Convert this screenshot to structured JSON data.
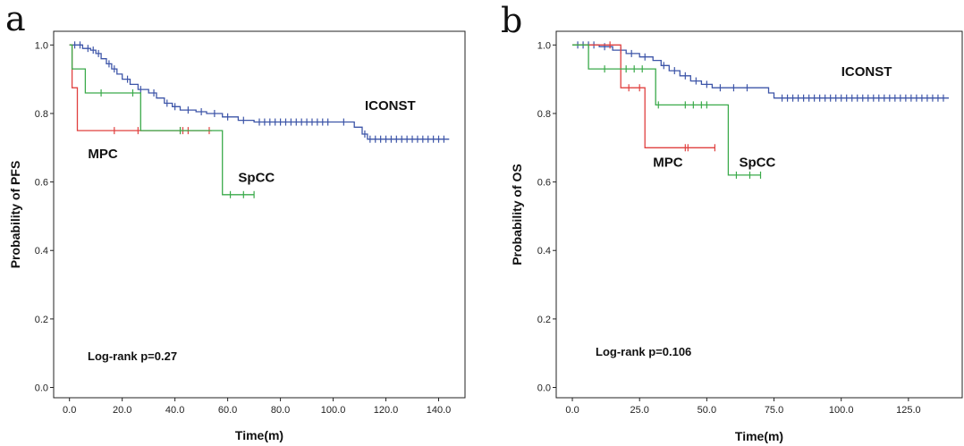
{
  "chart_data": [
    {
      "panel": "a",
      "type": "line",
      "xlabel": "Time(m)",
      "ylabel": "Probability of PFS",
      "xlim": [
        -6,
        150
      ],
      "ylim": [
        -0.03,
        1.04
      ],
      "xticks": [
        0,
        20,
        40,
        60,
        80,
        100,
        120,
        140
      ],
      "xtick_labels": [
        "0.0",
        "20.0",
        "40.0",
        "60.0",
        "80.0",
        "100.0",
        "120.0",
        "140.0"
      ],
      "yticks": [
        0,
        0.2,
        0.4,
        0.6,
        0.8,
        1.0
      ],
      "ytick_labels": [
        "0.0",
        "0.2",
        "0.4",
        "0.6",
        "0.8",
        "1.0"
      ],
      "annotation": "Log-rank p=0.27",
      "series": [
        {
          "name": "ICONST",
          "color": "#3d55a8",
          "end_x": 144,
          "steps": [
            [
              0,
              1.0
            ],
            [
              5,
              0.99
            ],
            [
              8,
              0.985
            ],
            [
              10,
              0.975
            ],
            [
              12,
              0.96
            ],
            [
              14,
              0.945
            ],
            [
              16,
              0.93
            ],
            [
              18,
              0.915
            ],
            [
              20,
              0.9
            ],
            [
              23,
              0.885
            ],
            [
              26,
              0.87
            ],
            [
              30,
              0.86
            ],
            [
              33,
              0.845
            ],
            [
              36,
              0.83
            ],
            [
              39,
              0.82
            ],
            [
              42,
              0.81
            ],
            [
              48,
              0.805
            ],
            [
              52,
              0.8
            ],
            [
              58,
              0.79
            ],
            [
              64,
              0.78
            ],
            [
              70,
              0.775
            ],
            [
              80,
              0.775
            ],
            [
              100,
              0.775
            ],
            [
              108,
              0.76
            ],
            [
              111,
              0.74
            ],
            [
              113,
              0.725
            ]
          ],
          "censors": [
            [
              2,
              1.0
            ],
            [
              4,
              1.0
            ],
            [
              7,
              0.99
            ],
            [
              9,
              0.985
            ],
            [
              11,
              0.975
            ],
            [
              15,
              0.945
            ],
            [
              17,
              0.93
            ],
            [
              22,
              0.9
            ],
            [
              27,
              0.87
            ],
            [
              32,
              0.86
            ],
            [
              37,
              0.83
            ],
            [
              40,
              0.82
            ],
            [
              45,
              0.81
            ],
            [
              50,
              0.805
            ],
            [
              55,
              0.8
            ],
            [
              60,
              0.79
            ],
            [
              66,
              0.78
            ],
            [
              72,
              0.775
            ],
            [
              74,
              0.775
            ],
            [
              76,
              0.775
            ],
            [
              78,
              0.775
            ],
            [
              80,
              0.775
            ],
            [
              82,
              0.775
            ],
            [
              84,
              0.775
            ],
            [
              86,
              0.775
            ],
            [
              88,
              0.775
            ],
            [
              90,
              0.775
            ],
            [
              92,
              0.775
            ],
            [
              94,
              0.775
            ],
            [
              96,
              0.775
            ],
            [
              98,
              0.775
            ],
            [
              104,
              0.775
            ],
            [
              112,
              0.74
            ],
            [
              114,
              0.725
            ],
            [
              116,
              0.725
            ],
            [
              118,
              0.725
            ],
            [
              120,
              0.725
            ],
            [
              122,
              0.725
            ],
            [
              124,
              0.725
            ],
            [
              126,
              0.725
            ],
            [
              128,
              0.725
            ],
            [
              130,
              0.725
            ],
            [
              132,
              0.725
            ],
            [
              134,
              0.725
            ],
            [
              136,
              0.725
            ],
            [
              138,
              0.725
            ],
            [
              140,
              0.725
            ],
            [
              142,
              0.725
            ]
          ],
          "label": "ICONST",
          "label_at": [
            112,
            0.81
          ]
        },
        {
          "name": "MPC",
          "color": "#e0403f",
          "end_x": 54,
          "steps": [
            [
              0,
              1.0
            ],
            [
              1,
              0.875
            ],
            [
              3,
              0.75
            ]
          ],
          "censors": [
            [
              17,
              0.75
            ],
            [
              26,
              0.75
            ],
            [
              42,
              0.75
            ],
            [
              43,
              0.75
            ],
            [
              45,
              0.75
            ],
            [
              53,
              0.75
            ]
          ],
          "label": "MPC",
          "label_at": [
            7,
            0.67
          ]
        },
        {
          "name": "SpCC",
          "color": "#3aaa4a",
          "end_x": 70,
          "steps": [
            [
              0,
              1.0
            ],
            [
              1,
              0.93
            ],
            [
              6,
              0.86
            ],
            [
              27,
              0.75
            ],
            [
              58,
              0.563
            ]
          ],
          "censors": [
            [
              12,
              0.86
            ],
            [
              24,
              0.86
            ],
            [
              42,
              0.75
            ],
            [
              61,
              0.563
            ],
            [
              66,
              0.563
            ],
            [
              70,
              0.563
            ]
          ],
          "label": "SpCC",
          "label_at": [
            64,
            0.6
          ]
        }
      ]
    },
    {
      "panel": "b",
      "type": "line",
      "xlabel": "Time(m)",
      "ylabel": "Probability of OS",
      "xlim": [
        -6,
        145
      ],
      "ylim": [
        -0.03,
        1.04
      ],
      "xticks": [
        0,
        25,
        50,
        75,
        100,
        125
      ],
      "xtick_labels": [
        "0.0",
        "25.0",
        "50.0",
        "75.0",
        "100.0",
        "125.0"
      ],
      "yticks": [
        0,
        0.2,
        0.4,
        0.6,
        0.8,
        1.0
      ],
      "ytick_labels": [
        "0.0",
        "0.2",
        "0.4",
        "0.6",
        "0.8",
        "1.0"
      ],
      "annotation": "Log-rank p=0.106",
      "series": [
        {
          "name": "ICONST",
          "color": "#3d55a8",
          "end_x": 140,
          "steps": [
            [
              0,
              1.0
            ],
            [
              10,
              0.995
            ],
            [
              15,
              0.985
            ],
            [
              20,
              0.975
            ],
            [
              25,
              0.965
            ],
            [
              30,
              0.955
            ],
            [
              33,
              0.94
            ],
            [
              36,
              0.925
            ],
            [
              40,
              0.91
            ],
            [
              44,
              0.895
            ],
            [
              48,
              0.885
            ],
            [
              52,
              0.875
            ],
            [
              70,
              0.875
            ],
            [
              73,
              0.86
            ],
            [
              75,
              0.845
            ]
          ],
          "censors": [
            [
              2,
              1.0
            ],
            [
              4,
              1.0
            ],
            [
              6,
              1.0
            ],
            [
              8,
              1.0
            ],
            [
              12,
              0.995
            ],
            [
              18,
              0.985
            ],
            [
              22,
              0.975
            ],
            [
              27,
              0.965
            ],
            [
              34,
              0.94
            ],
            [
              38,
              0.925
            ],
            [
              42,
              0.91
            ],
            [
              46,
              0.895
            ],
            [
              50,
              0.885
            ],
            [
              55,
              0.875
            ],
            [
              60,
              0.875
            ],
            [
              65,
              0.875
            ],
            [
              78,
              0.845
            ],
            [
              80,
              0.845
            ],
            [
              82,
              0.845
            ],
            [
              84,
              0.845
            ],
            [
              86,
              0.845
            ],
            [
              88,
              0.845
            ],
            [
              90,
              0.845
            ],
            [
              92,
              0.845
            ],
            [
              94,
              0.845
            ],
            [
              96,
              0.845
            ],
            [
              98,
              0.845
            ],
            [
              100,
              0.845
            ],
            [
              102,
              0.845
            ],
            [
              104,
              0.845
            ],
            [
              106,
              0.845
            ],
            [
              108,
              0.845
            ],
            [
              110,
              0.845
            ],
            [
              112,
              0.845
            ],
            [
              114,
              0.845
            ],
            [
              116,
              0.845
            ],
            [
              118,
              0.845
            ],
            [
              120,
              0.845
            ],
            [
              122,
              0.845
            ],
            [
              124,
              0.845
            ],
            [
              126,
              0.845
            ],
            [
              128,
              0.845
            ],
            [
              130,
              0.845
            ],
            [
              132,
              0.845
            ],
            [
              134,
              0.845
            ],
            [
              136,
              0.845
            ],
            [
              138,
              0.845
            ]
          ],
          "label": "ICONST",
          "label_at": [
            100,
            0.91
          ]
        },
        {
          "name": "MPC",
          "color": "#e0403f",
          "end_x": 53,
          "steps": [
            [
              0,
              1.0
            ],
            [
              18,
              0.875
            ],
            [
              27,
              0.7
            ]
          ],
          "censors": [
            [
              14,
              1.0
            ],
            [
              21,
              0.875
            ],
            [
              25,
              0.875
            ],
            [
              42,
              0.7
            ],
            [
              43,
              0.7
            ],
            [
              53,
              0.7
            ]
          ],
          "label": "MPC",
          "label_at": [
            30,
            0.645
          ]
        },
        {
          "name": "SpCC",
          "color": "#3aaa4a",
          "end_x": 70,
          "steps": [
            [
              0,
              1.0
            ],
            [
              6,
              0.93
            ],
            [
              31,
              0.825
            ],
            [
              58,
              0.62
            ]
          ],
          "censors": [
            [
              12,
              0.93
            ],
            [
              20,
              0.93
            ],
            [
              23,
              0.93
            ],
            [
              26,
              0.93
            ],
            [
              32,
              0.825
            ],
            [
              42,
              0.825
            ],
            [
              45,
              0.825
            ],
            [
              48,
              0.825
            ],
            [
              50,
              0.825
            ],
            [
              61,
              0.62
            ],
            [
              66,
              0.62
            ],
            [
              70,
              0.62
            ]
          ],
          "label": "SpCC",
          "label_at": [
            62,
            0.645
          ]
        }
      ]
    }
  ]
}
